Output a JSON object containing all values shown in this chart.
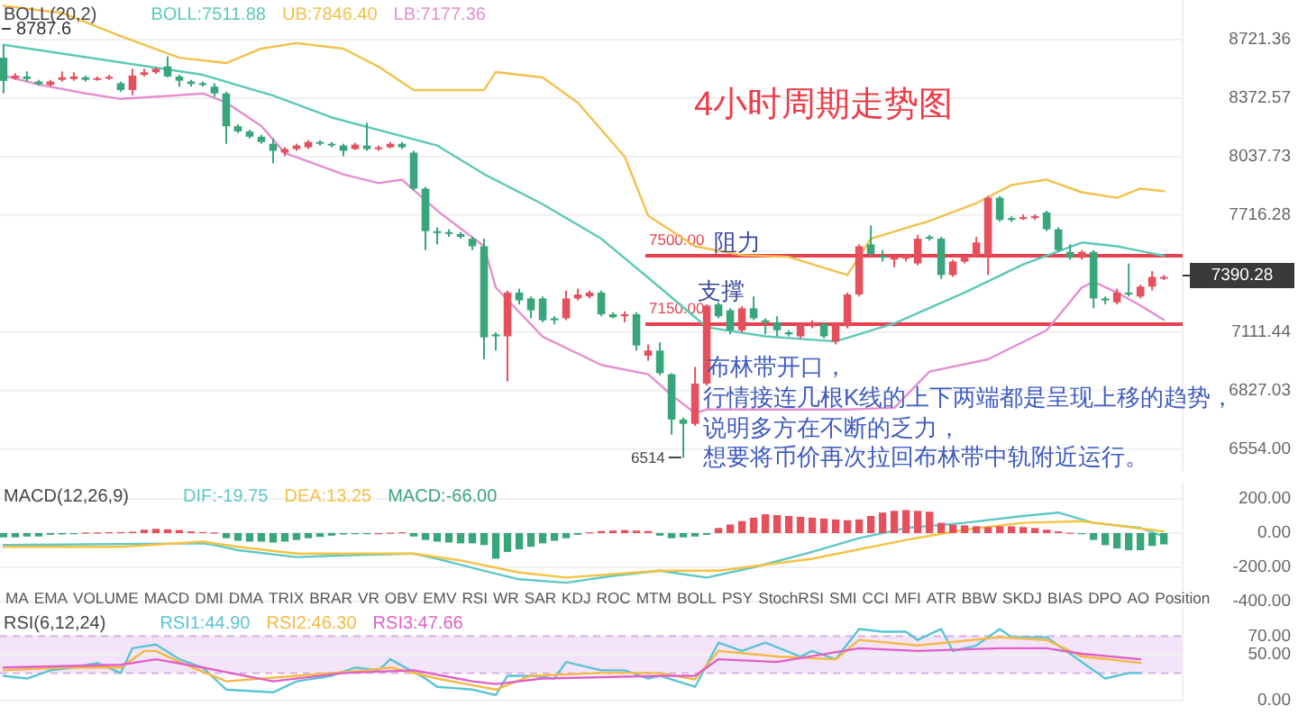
{
  "chart_data": [
    {
      "type": "candlestick",
      "title": "BOLL(20,2)",
      "log": true,
      "grid": "y",
      "legend": "top left",
      "categories": [
        null,
        null,
        null,
        null,
        null,
        null,
        null,
        null,
        null,
        null,
        null,
        null,
        null,
        null,
        null,
        null,
        null,
        null,
        null,
        null,
        null,
        null,
        null,
        null,
        null,
        null,
        null,
        null,
        null,
        null,
        null,
        null,
        null,
        null,
        null,
        null,
        null,
        null,
        null,
        null,
        null,
        null,
        null,
        null,
        null,
        null,
        null,
        null,
        null,
        null,
        null,
        null,
        null,
        null,
        null,
        null,
        null,
        null,
        null,
        null,
        null,
        null,
        null,
        null,
        null,
        null,
        null,
        null,
        null,
        null,
        null,
        null,
        null,
        null,
        null,
        null,
        null,
        null,
        null,
        null,
        null,
        null,
        null,
        null,
        null,
        null,
        null,
        null,
        null,
        null,
        null,
        null,
        null,
        null,
        null,
        null,
        null,
        null,
        null,
        null
      ],
      "ohlc": [
        [
          8612,
          8688,
          8400,
          8474
        ],
        [
          8490,
          8520,
          8480,
          8505
        ],
        [
          8500,
          8530,
          8470,
          8485
        ],
        [
          8470,
          8480,
          8445,
          8455
        ],
        [
          8450,
          8480,
          8440,
          8470
        ],
        [
          8480,
          8530,
          8470,
          8495
        ],
        [
          8485,
          8525,
          8475,
          8500
        ],
        [
          8495,
          8505,
          8470,
          8480
        ],
        [
          8480,
          8500,
          8475,
          8490
        ],
        [
          8488,
          8510,
          8480,
          8498
        ],
        [
          8460,
          8470,
          8410,
          8420
        ],
        [
          8420,
          8545,
          8390,
          8505
        ],
        [
          8510,
          8545,
          8500,
          8525
        ],
        [
          8525,
          8555,
          8515,
          8545
        ],
        [
          8560,
          8620,
          8495,
          8500
        ],
        [
          8500,
          8510,
          8440,
          8475
        ],
        [
          8470,
          8480,
          8440,
          8455
        ],
        [
          8460,
          8470,
          8440,
          8450
        ],
        [
          8440,
          8460,
          8380,
          8400
        ],
        [
          8400,
          8410,
          8110,
          8210
        ],
        [
          8210,
          8220,
          8170,
          8180
        ],
        [
          8180,
          8190,
          8140,
          8150
        ],
        [
          8150,
          8160,
          8110,
          8120
        ],
        [
          8110,
          8140,
          8000,
          8070
        ],
        [
          8060,
          8090,
          8040,
          8080
        ],
        [
          8080,
          8110,
          8070,
          8100
        ],
        [
          8090,
          8130,
          8080,
          8120
        ],
        [
          8120,
          8130,
          8100,
          8110
        ],
        [
          8110,
          8120,
          8090,
          8100
        ],
        [
          8100,
          8110,
          8040,
          8070
        ],
        [
          8080,
          8115,
          8075,
          8105
        ],
        [
          8100,
          8230,
          8070,
          8080
        ],
        [
          8080,
          8100,
          8070,
          8090
        ],
        [
          8090,
          8120,
          8085,
          8110
        ],
        [
          8110,
          8120,
          8080,
          8090
        ],
        [
          8060,
          8070,
          7850,
          7860
        ],
        [
          7860,
          7870,
          7530,
          7630
        ],
        [
          7630,
          7650,
          7560,
          7620
        ],
        [
          7625,
          7640,
          7600,
          7615
        ],
        [
          7615,
          7625,
          7590,
          7600
        ],
        [
          7590,
          7600,
          7530,
          7550
        ],
        [
          7550,
          7590,
          6977,
          7085
        ],
        [
          7100,
          7110,
          7020,
          7090
        ],
        [
          7090,
          7320,
          6870,
          7310
        ],
        [
          7310,
          7330,
          7250,
          7270
        ],
        [
          7280,
          7290,
          7180,
          7220
        ],
        [
          7280,
          7290,
          7160,
          7170
        ],
        [
          7180,
          7190,
          7150,
          7170
        ],
        [
          7180,
          7320,
          7170,
          7280
        ],
        [
          7280,
          7330,
          7270,
          7300
        ],
        [
          7290,
          7320,
          7280,
          7310
        ],
        [
          7310,
          7320,
          7190,
          7200
        ],
        [
          7200,
          7210,
          7180,
          7185
        ],
        [
          7190,
          7215,
          7160,
          7200
        ],
        [
          7200,
          7210,
          7020,
          7045
        ],
        [
          6995,
          7050,
          6970,
          7020
        ],
        [
          7020,
          7060,
          6900,
          6910
        ],
        [
          6905,
          6910,
          6620,
          6690
        ],
        [
          6690,
          6700,
          6514,
          6670
        ],
        [
          6670,
          6940,
          6660,
          6860
        ],
        [
          6860,
          7250,
          6850,
          7244
        ],
        [
          7250,
          7260,
          7180,
          7190
        ],
        [
          7220,
          7230,
          7100,
          7120
        ],
        [
          7120,
          7240,
          7110,
          7230
        ],
        [
          7230,
          7290,
          7170,
          7180
        ],
        [
          7170,
          7180,
          7100,
          7160
        ],
        [
          7160,
          7190,
          7090,
          7120
        ],
        [
          7110,
          7120,
          7090,
          7100
        ],
        [
          7090,
          7160,
          7080,
          7150
        ],
        [
          7140,
          7170,
          7130,
          7160
        ],
        [
          7150,
          7160,
          7080,
          7090
        ],
        [
          7065,
          7160,
          7050,
          7150
        ],
        [
          7140,
          7310,
          7130,
          7300
        ],
        [
          7300,
          7560,
          7290,
          7550
        ],
        [
          7560,
          7660,
          7500,
          7510
        ],
        [
          7500,
          7530,
          7470,
          7490
        ],
        [
          7480,
          7510,
          7440,
          7495
        ],
        [
          7485,
          7510,
          7470,
          7500
        ],
        [
          7460,
          7610,
          7450,
          7590
        ],
        [
          7600,
          7610,
          7580,
          7590
        ],
        [
          7590,
          7600,
          7380,
          7400
        ],
        [
          7400,
          7480,
          7390,
          7470
        ],
        [
          7470,
          7500,
          7460,
          7490
        ],
        [
          7500,
          7600,
          7490,
          7570
        ],
        [
          7500,
          7820,
          7400,
          7810
        ],
        [
          7810,
          7820,
          7680,
          7690
        ],
        [
          7700,
          7710,
          7680,
          7690
        ],
        [
          7700,
          7720,
          7690,
          7705
        ],
        [
          7700,
          7720,
          7690,
          7710
        ],
        [
          7730,
          7740,
          7630,
          7640
        ],
        [
          7640,
          7650,
          7520,
          7530
        ],
        [
          7520,
          7560,
          7480,
          7490
        ],
        [
          7490,
          7530,
          7480,
          7520
        ],
        [
          7520,
          7530,
          7230,
          7280
        ],
        [
          7280,
          7290,
          7250,
          7270
        ],
        [
          7260,
          7330,
          7250,
          7310
        ],
        [
          7310,
          7460,
          7290,
          7300
        ],
        [
          7290,
          7350,
          7280,
          7340
        ],
        [
          7340,
          7420,
          7320,
          7390
        ],
        [
          7385,
          7400,
          7375,
          7390
        ]
      ],
      "series": [
        {
          "name": "BOLL:7511.88",
          "type": "line",
          "color": "#5cc9b8",
          "values": [
            8690,
            null,
            null,
            null,
            null,
            null,
            null,
            null,
            null,
            null,
            null,
            null,
            null,
            null,
            null,
            null,
            null,
            8510,
            null,
            null,
            null,
            null,
            null,
            8387,
            null,
            null,
            null,
            null,
            8260,
            null,
            null,
            null,
            null,
            null,
            null,
            null,
            null,
            8100,
            null,
            null,
            null,
            7940,
            null,
            null,
            null,
            null,
            7775,
            null,
            null,
            null,
            null,
            7590,
            null,
            null,
            null,
            null,
            7336,
            null,
            null,
            null,
            7135,
            null,
            null,
            null,
            null,
            7090,
            null,
            null,
            null,
            null,
            null,
            7065,
            null,
            null,
            null,
            null,
            7154,
            null,
            null,
            null,
            null,
            null,
            7310,
            null,
            null,
            null,
            null,
            7455,
            null,
            null,
            null,
            null,
            7570,
            null,
            null,
            7550,
            null,
            null,
            null,
            7500
          ]
        },
        {
          "name": "UB:7846.40",
          "type": "line",
          "color": "#f2c14e",
          "values": [
            8930,
            null,
            null,
            null,
            null,
            8885,
            null,
            null,
            null,
            null,
            8743,
            null,
            null,
            null,
            null,
            8612,
            null,
            null,
            null,
            8580,
            null,
            null,
            8667,
            null,
            null,
            8700,
            null,
            null,
            null,
            8667,
            null,
            null,
            8558,
            null,
            null,
            8420,
            null,
            null,
            null,
            null,
            null,
            8420,
            8526,
            null,
            null,
            null,
            8494,
            null,
            null,
            8346,
            null,
            null,
            null,
            8037,
            null,
            7713,
            null,
            null,
            null,
            7550,
            null,
            null,
            null,
            7503,
            null,
            null,
            null,
            7494,
            null,
            null,
            null,
            null,
            7400,
            null,
            7590,
            null,
            null,
            null,
            null,
            7685,
            null,
            null,
            null,
            7780,
            null,
            null,
            7880,
            null,
            null,
            7909,
            null,
            null,
            7840,
            null,
            null,
            7810,
            null,
            7860,
            null,
            7846
          ]
        },
        {
          "name": "LB:7177.36",
          "type": "line",
          "color": "#e58fd0",
          "values": [
            8505,
            null,
            null,
            8452,
            null,
            null,
            null,
            8400,
            null,
            null,
            8368,
            null,
            null,
            null,
            null,
            8389,
            null,
            8400,
            null,
            8346,
            null,
            null,
            8211,
            null,
            8058,
            null,
            null,
            null,
            null,
            7939,
            null,
            null,
            7890,
            null,
            7909,
            null,
            null,
            7740,
            null,
            null,
            null,
            7550,
            7336,
            null,
            null,
            null,
            7088,
            null,
            null,
            null,
            null,
            6950,
            null,
            null,
            null,
            6905,
            null,
            6805,
            null,
            6720,
            6737,
            null,
            null,
            null,
            null,
            null,
            null,
            null,
            null,
            null,
            null,
            null,
            6737,
            null,
            null,
            null,
            6745,
            null,
            null,
            6918,
            null,
            null,
            null,
            null,
            6977,
            null,
            null,
            null,
            null,
            7120,
            null,
            null,
            7336,
            7365,
            null,
            7310,
            null,
            7244,
            null,
            7172
          ]
        }
      ],
      "ylim": [
        6450,
        8966
      ],
      "yticks": [
        8721.36,
        8372.57,
        8037.73,
        7716.28,
        7111.44,
        6827.03,
        {
          "value": 6554,
          "label": "6554.00"
        }
      ],
      "ref_lines": [
        {
          "axis": "y",
          "value": 7500,
          "label": "7500.00",
          "color": "#e8404f"
        },
        {
          "axis": "y",
          "value": 7150,
          "label": "7150.00",
          "color": "#e8404f"
        }
      ],
      "annotations": [
        "4小时周期走势图",
        {
          "text": "阻力",
          "y": 7500
        },
        {
          "text": "支撑",
          "y": 7150
        },
        "6514",
        "8787.6",
        "布林带开口，",
        "行情接连几根K线的上下两端都是呈现上移的趋势，",
        "说明多方在不断的乏力，",
        "想要将币价再次拉回布林带中轨附近运行。",
        "7390.28"
      ]
    },
    {
      "type": "bar",
      "title": "MACD(12,26,9)",
      "grid": "y",
      "legend": "top left",
      "categories": [
        null,
        null,
        null,
        null,
        null,
        null,
        null,
        null,
        null,
        null,
        null,
        null,
        null,
        null,
        null,
        null,
        null,
        null,
        null,
        null,
        null,
        null,
        null,
        null,
        null,
        null,
        null,
        null,
        null,
        null,
        null,
        null,
        null,
        null,
        null,
        null,
        null,
        null,
        null,
        null,
        null,
        null,
        null,
        null,
        null,
        null,
        null,
        null,
        null,
        null,
        null,
        null,
        null,
        null,
        null,
        null,
        null,
        null,
        null,
        null,
        null,
        null,
        null,
        null,
        null,
        null,
        null,
        null,
        null,
        null,
        null,
        null,
        null,
        null,
        null,
        null,
        null,
        null,
        null,
        null,
        null,
        null,
        null,
        null,
        null,
        null,
        null,
        null,
        null,
        null,
        null,
        null,
        null,
        null,
        null,
        null,
        null,
        null,
        null,
        null
      ],
      "series": [
        {
          "name": "DIF:-19.75",
          "type": "line",
          "color": "#5ec8c8",
          "values": [
            -70,
            null,
            null,
            null,
            null,
            null,
            null,
            null,
            null,
            null,
            null,
            null,
            null,
            null,
            null,
            null,
            null,
            -60,
            -70,
            null,
            -100,
            null,
            null,
            null,
            null,
            -140,
            null,
            null,
            null,
            -130,
            null,
            null,
            null,
            null,
            null,
            -120,
            null,
            -150,
            null,
            null,
            null,
            -220,
            null,
            null,
            -270,
            null,
            null,
            null,
            -290,
            null,
            null,
            null,
            -250,
            null,
            null,
            null,
            -220,
            null,
            null,
            null,
            -260,
            null,
            null,
            null,
            -200,
            null,
            null,
            null,
            null,
            -110,
            null,
            null,
            null,
            -30,
            null,
            null,
            null,
            30,
            null,
            null,
            null,
            null,
            60,
            null,
            null,
            null,
            null,
            100,
            null,
            null,
            120,
            null,
            null,
            60,
            null,
            null,
            null,
            30,
            null,
            -20
          ]
        },
        {
          "name": "DEA:13.25",
          "type": "line",
          "color": "#f5c242",
          "values": [
            -80,
            null,
            null,
            null,
            null,
            null,
            null,
            null,
            null,
            null,
            -80,
            null,
            null,
            null,
            null,
            null,
            null,
            -50,
            null,
            null,
            -80,
            null,
            null,
            null,
            null,
            -120,
            null,
            null,
            null,
            null,
            null,
            null,
            null,
            null,
            null,
            -120,
            null,
            null,
            null,
            -160,
            null,
            null,
            null,
            null,
            -230,
            null,
            null,
            null,
            -260,
            null,
            null,
            null,
            null,
            null,
            null,
            null,
            -220,
            null,
            null,
            null,
            null,
            -220,
            null,
            null,
            null,
            null,
            null,
            null,
            null,
            -150,
            null,
            null,
            null,
            null,
            null,
            null,
            null,
            -40,
            null,
            null,
            null,
            null,
            20,
            null,
            null,
            null,
            null,
            60,
            null,
            null,
            null,
            null,
            70,
            null,
            null,
            null,
            null,
            null,
            null,
            10
          ]
        },
        {
          "name": "MACD:-66.00",
          "type": "bar",
          "color": "#38a57a",
          "values": [
            -25,
            -25,
            -20,
            -20,
            -10,
            -8,
            -6,
            3,
            4,
            5,
            6,
            8,
            20,
            25,
            22,
            18,
            10,
            6,
            4,
            -30,
            -45,
            -50,
            -50,
            -55,
            -50,
            -40,
            -30,
            -22,
            -15,
            -8,
            -5,
            -2,
            0,
            2,
            5,
            -20,
            -40,
            -50,
            -55,
            -60,
            -60,
            -70,
            -150,
            -110,
            -95,
            -80,
            -60,
            -45,
            -30,
            -10,
            5,
            12,
            15,
            18,
            15,
            12,
            -15,
            -30,
            -25,
            -20,
            -10,
            30,
            50,
            70,
            90,
            110,
            105,
            100,
            95,
            90,
            85,
            80,
            75,
            80,
            100,
            120,
            130,
            135,
            130,
            125,
            60,
            50,
            45,
            40,
            35,
            40,
            40,
            35,
            30,
            20,
            10,
            2,
            -2,
            -40,
            -70,
            -90,
            -100,
            -100,
            -75,
            -66
          ],
          "colors": [
            "#38a57a",
            "#38a57a",
            "#38a57a",
            "#38a57a",
            "#38a57a",
            "#38a57a",
            "#38a57a",
            "#e5505d",
            "#e5505d",
            "#e5505d",
            "#e5505d",
            "#e5505d",
            "#e5505d",
            "#e5505d",
            "#e5505d",
            "#e5505d",
            "#e5505d",
            "#e5505d",
            "#e5505d",
            "#38a57a",
            "#38a57a",
            "#38a57a",
            "#38a57a",
            "#38a57a",
            "#38a57a",
            "#38a57a",
            "#38a57a",
            "#38a57a",
            "#38a57a",
            "#38a57a",
            "#38a57a",
            "#38a57a",
            "#e5505d",
            "#e5505d",
            "#e5505d",
            "#38a57a",
            "#38a57a",
            "#38a57a",
            "#38a57a",
            "#38a57a",
            "#38a57a",
            "#38a57a",
            "#38a57a",
            "#38a57a",
            "#38a57a",
            "#38a57a",
            "#38a57a",
            "#38a57a",
            "#38a57a",
            "#38a57a",
            "#e5505d",
            "#e5505d",
            "#e5505d",
            "#e5505d",
            "#e5505d",
            "#e5505d",
            "#38a57a",
            "#38a57a",
            "#38a57a",
            "#38a57a",
            "#38a57a",
            "#e5505d",
            "#e5505d",
            "#e5505d",
            "#e5505d",
            "#e5505d",
            "#e5505d",
            "#e5505d",
            "#e5505d",
            "#e5505d",
            "#e5505d",
            "#e5505d",
            "#e5505d",
            "#e5505d",
            "#e5505d",
            "#e5505d",
            "#e5505d",
            "#e5505d",
            "#e5505d",
            "#e5505d",
            "#e5505d",
            "#e5505d",
            "#e5505d",
            "#e5505d",
            "#e5505d",
            "#e5505d",
            "#e5505d",
            "#e5505d",
            "#e5505d",
            "#e5505d",
            "#e5505d",
            "#e5505d",
            "#38a57a",
            "#38a57a",
            "#38a57a",
            "#38a57a",
            "#38a57a",
            "#38a57a",
            "#38a57a",
            "#38a57a"
          ]
        }
      ],
      "ylim": [
        -400,
        300
      ],
      "yticks": [
        {
          "value": 200,
          "label": "200.00"
        },
        {
          "value": 0,
          "label": "0.00"
        },
        {
          "value": -200,
          "label": "-200.00"
        },
        {
          "value": -400,
          "label": "-400.00"
        }
      ],
      "annotations": [
        "MA",
        "EMA",
        "VOLUME",
        "MACD",
        "DMI",
        "DMA",
        "TRIX",
        "BRAR",
        "VR",
        "OBV",
        "EMV",
        "RSI",
        "WR",
        "SAR",
        "KDJ",
        "ROC",
        "MTM",
        "BOLL",
        "PSY",
        "StochRSI",
        "SMI",
        "CCI",
        "MFI",
        "ATR",
        "BBW",
        "SKDJ",
        "BIAS",
        "DPO",
        "AO",
        "Position"
      ]
    },
    {
      "type": "line",
      "title": "RSI(6,12,24)",
      "grid": "y",
      "legend": "top left",
      "categories": [
        null,
        null,
        null,
        null,
        null,
        null,
        null,
        null,
        null,
        null,
        null,
        null,
        null,
        null,
        null,
        null,
        null,
        null,
        null,
        null,
        null,
        null,
        null,
        null,
        null,
        null,
        null,
        null,
        null,
        null,
        null,
        null,
        null,
        null,
        null,
        null,
        null,
        null,
        null,
        null,
        null,
        null,
        null,
        null,
        null,
        null,
        null,
        null,
        null,
        null,
        null,
        null,
        null,
        null,
        null,
        null,
        null,
        null,
        null,
        null,
        null,
        null,
        null,
        null,
        null,
        null,
        null,
        null,
        null,
        null,
        null,
        null,
        null,
        null,
        null,
        null,
        null,
        null,
        null,
        null,
        null,
        null,
        null,
        null,
        null,
        null,
        null,
        null,
        null,
        null,
        null,
        null,
        null,
        null,
        null,
        null,
        null,
        null,
        null,
        null
      ],
      "series": [
        {
          "name": "RSI1:44.90",
          "color": "#5bc4d4",
          "values": [
            27,
            null,
            24,
            null,
            33,
            null,
            36,
            null,
            41,
            null,
            30,
            57,
            null,
            61,
            null,
            45,
            null,
            36,
            null,
            12,
            null,
            null,
            null,
            9,
            null,
            21,
            null,
            null,
            27,
            null,
            36,
            null,
            33,
            45,
            null,
            null,
            24,
            15,
            null,
            null,
            12,
            null,
            6,
            27,
            null,
            27,
            null,
            24,
            42,
            null,
            null,
            33,
            null,
            33,
            null,
            24,
            27,
            null,
            null,
            15,
            null,
            63,
            null,
            54,
            null,
            63,
            null,
            null,
            48,
            54,
            null,
            45,
            null,
            78,
            null,
            75,
            null,
            75,
            66,
            null,
            78,
            54,
            null,
            60,
            null,
            78,
            69,
            null,
            null,
            69,
            null,
            null,
            42,
            null,
            24,
            null,
            30,
            30,
            null,
            null
          ]
        },
        {
          "name": "RSI2:46.30",
          "color": "#f5b942",
          "values": [
            33,
            null,
            null,
            null,
            null,
            36,
            null,
            null,
            null,
            null,
            36,
            null,
            54,
            54,
            null,
            42,
            null,
            null,
            null,
            21,
            null,
            null,
            null,
            null,
            null,
            27,
            null,
            null,
            null,
            null,
            null,
            33,
            null,
            36,
            null,
            null,
            null,
            24,
            null,
            null,
            null,
            null,
            12,
            null,
            null,
            27,
            null,
            null,
            null,
            null,
            null,
            30,
            null,
            null,
            null,
            null,
            30,
            null,
            null,
            23,
            null,
            54,
            null,
            null,
            null,
            null,
            48,
            null,
            null,
            null,
            null,
            45,
            null,
            66,
            null,
            null,
            null,
            null,
            60,
            null,
            null,
            null,
            null,
            null,
            null,
            69,
            null,
            null,
            null,
            66,
            null,
            null,
            48,
            null,
            null,
            null,
            null,
            41,
            null,
            null
          ]
        },
        {
          "name": "RSI3:47.66",
          "color": "#e060c8",
          "values": [
            36,
            null,
            null,
            null,
            null,
            null,
            null,
            null,
            null,
            null,
            39,
            null,
            null,
            45,
            null,
            null,
            null,
            36,
            null,
            null,
            null,
            null,
            null,
            21,
            null,
            null,
            null,
            null,
            null,
            30,
            null,
            null,
            null,
            null,
            null,
            33,
            null,
            null,
            null,
            null,
            21,
            null,
            18,
            null,
            null,
            null,
            24,
            null,
            null,
            null,
            null,
            null,
            null,
            null,
            null,
            null,
            27,
            null,
            null,
            27,
            null,
            45,
            null,
            null,
            null,
            null,
            42,
            null,
            null,
            null,
            null,
            null,
            null,
            57,
            null,
            null,
            null,
            null,
            54,
            null,
            null,
            null,
            null,
            null,
            null,
            57,
            null,
            null,
            null,
            57,
            null,
            null,
            51,
            null,
            null,
            null,
            null,
            45,
            null,
            null
          ]
        }
      ],
      "ylim": [
        0,
        100
      ],
      "yticks": [
        {
          "value": 70,
          "label": "70.00"
        },
        {
          "value": 50,
          "label": "50.00"
        },
        {
          "value": 0,
          "label": "0.00"
        }
      ],
      "bands": [
        {
          "axis": "y",
          "from": 30,
          "to": 70,
          "color": "#f3e4fa"
        }
      ],
      "ref_lines": [
        {
          "axis": "y",
          "value": 70,
          "color": "#d9aee6",
          "line_style": "dashed"
        },
        {
          "axis": "y",
          "value": 30,
          "color": "#d9aee6",
          "line_style": "dashed"
        }
      ]
    }
  ]
}
